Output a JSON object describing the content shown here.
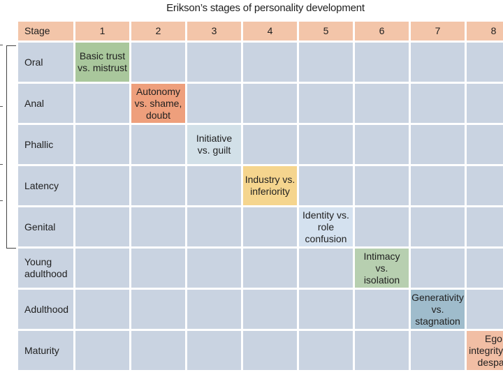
{
  "title": "Erikson’s stages of personality development",
  "header": {
    "stage_label": "Stage",
    "numbers": [
      "1",
      "2",
      "3",
      "4",
      "5",
      "6",
      "7",
      "8"
    ]
  },
  "rows": [
    {
      "label": "Oral",
      "crisis": "Basic trust vs. mistrust",
      "color": "#a9c79c"
    },
    {
      "label": "Anal",
      "crisis": "Autonomy vs. shame, doubt",
      "color": "#ee9f7c"
    },
    {
      "label": "Phallic",
      "crisis": "Initiative vs. guilt",
      "color": "#d2e0e8"
    },
    {
      "label": "Latency",
      "crisis": "Industry vs. inferiority",
      "color": "#f5d58e"
    },
    {
      "label": "Genital",
      "crisis": "Identity vs. role confusion",
      "color": "#d4e1ef"
    },
    {
      "label": "Young adulthood",
      "crisis": "Intimacy vs. isolation",
      "color": "#b7cfb0"
    },
    {
      "label": "Adulthood",
      "crisis": "Generativity vs. stagnation",
      "color": "#9fbccc"
    },
    {
      "label": "Maturity",
      "crisis": "Ego integrity vs. despair",
      "color": "#f1bea4"
    }
  ],
  "colors": {
    "header_bg": "#f3c5a9",
    "cell_bg": "#c9d3e1"
  }
}
